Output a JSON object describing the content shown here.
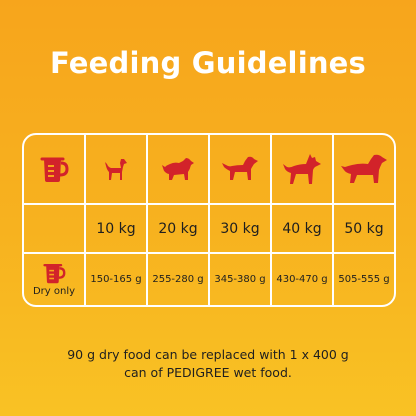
{
  "title": "Feeding Guidelines",
  "colors": {
    "accent": "#d2232a",
    "grid": "#ffffff",
    "background": "#f7a51c"
  },
  "header_icons": [
    "measuring-cup-icon",
    "small-dog-icon",
    "medium-dog-icon",
    "setter-dog-icon",
    "shepherd-dog-icon",
    "large-dog-icon"
  ],
  "weights": [
    "10 kg",
    "20 kg",
    "30 kg",
    "40 kg",
    "50 kg"
  ],
  "dry_label": "Dry only",
  "amounts": [
    "150-165 g",
    "255-280 g",
    "345-380 g",
    "430-470 g",
    "505-555 g"
  ],
  "footer": {
    "line1": "90 g dry food can be replaced with 1 x 400 g",
    "line2": "can of PEDIGREE wet food."
  }
}
